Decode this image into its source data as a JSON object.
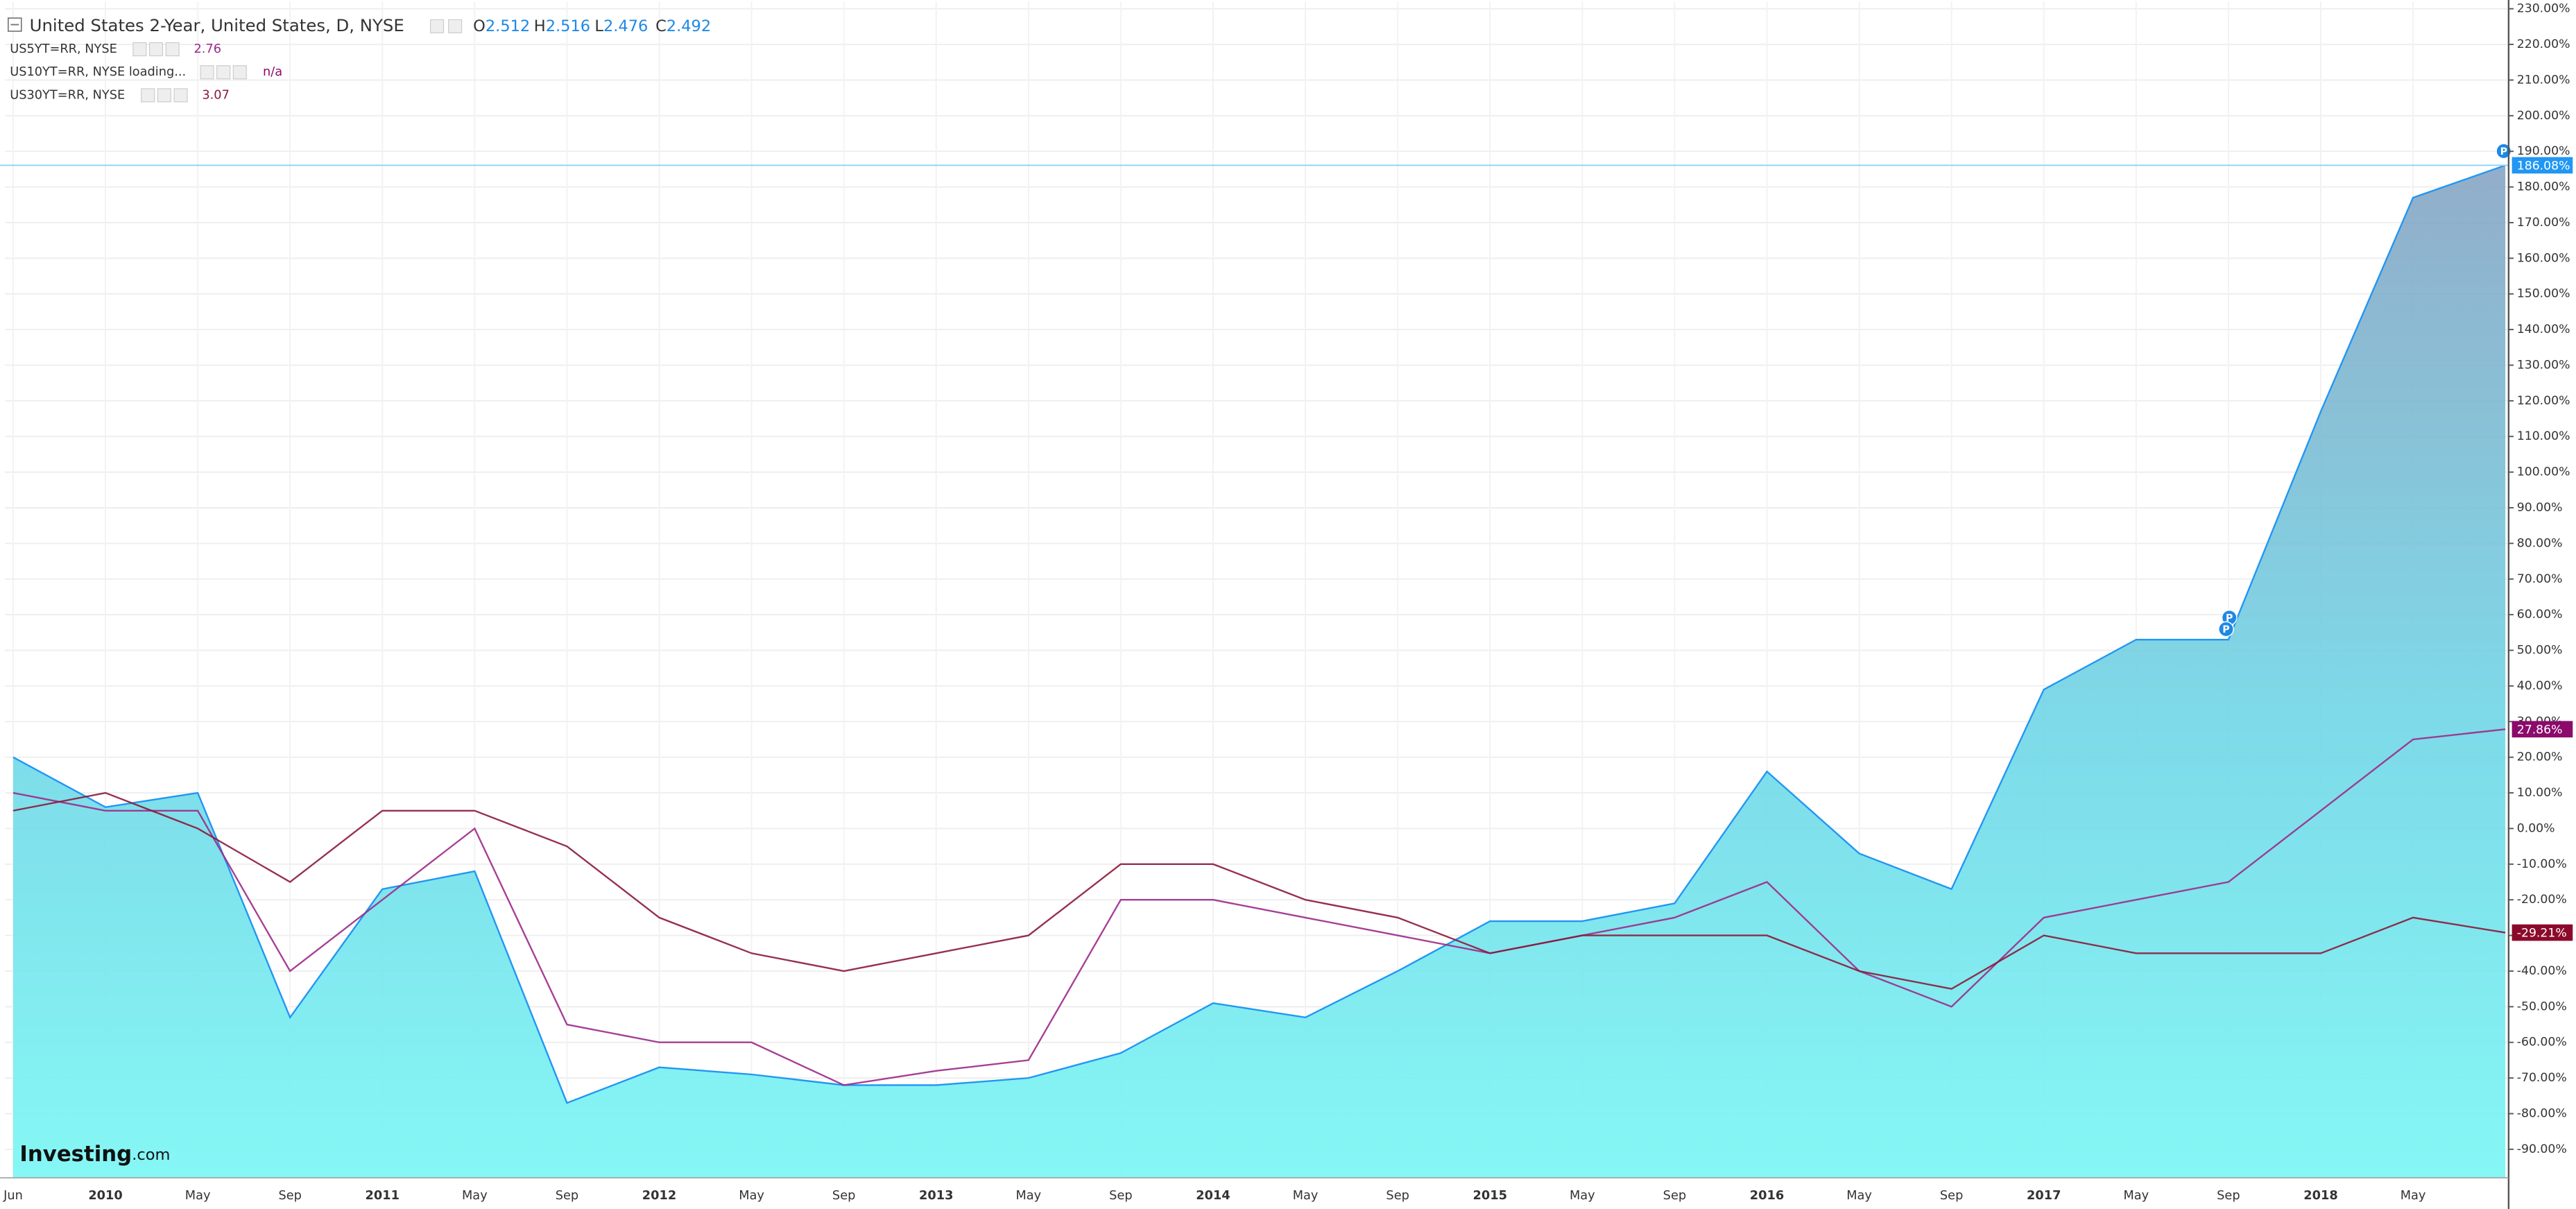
{
  "chart_data": {
    "type": "line",
    "categories": [
      "Jun",
      "2010",
      "May",
      "Sep",
      "2011",
      "May",
      "Sep",
      "2012",
      "May",
      "Sep",
      "2013",
      "May",
      "Sep",
      "2014",
      "May",
      "Sep",
      "2015",
      "May",
      "Sep",
      "2016",
      "May",
      "Sep",
      "2017",
      "May",
      "Sep",
      "2018",
      "May",
      null
    ],
    "series": [
      {
        "name": "United States 2-Year, United States, D, NYSE",
        "kind": "area",
        "color": "#2196f3",
        "ohlc": [
          {
            "label": "O",
            "value": 2.512
          },
          {
            "label": "H",
            "value": 2.516
          },
          {
            "label": "L",
            "value": 2.476
          },
          {
            "label": "C",
            "value": 2.492
          }
        ],
        "values": [
          20,
          6,
          10,
          -53,
          -17,
          -12,
          -77,
          -67,
          -69,
          -72,
          -72,
          -70,
          -63,
          -49,
          -53,
          -40,
          -26,
          -26,
          -21,
          16,
          -7,
          -17,
          39,
          53,
          53,
          117,
          177,
          186.08
        ],
        "current_label": "186.08%"
      },
      {
        "name": "US5YT=RR, NYSE",
        "kind": "line",
        "color": "#9c2a8a",
        "legend_value": 2.76,
        "values": [
          10,
          5,
          5,
          -40,
          -20,
          0,
          -55,
          -60,
          -60,
          -72,
          -68,
          -65,
          -20,
          -20,
          -25,
          -30,
          -35,
          -30,
          -25,
          -15,
          -40,
          -50,
          -25,
          -20,
          -15,
          5,
          25,
          27.86
        ],
        "current_label": "27.86%",
        "label_color": "#8b0a6b"
      },
      {
        "name": "US30YT=RR, NYSE",
        "kind": "line",
        "color": "#8b1a3a",
        "legend_value": 3.07,
        "values": [
          5,
          10,
          0,
          -15,
          5,
          5,
          -5,
          -25,
          -35,
          -40,
          -35,
          -30,
          -10,
          -10,
          -20,
          -25,
          -35,
          -30,
          -30,
          -30,
          -40,
          -45,
          -30,
          -35,
          -35,
          -35,
          -25,
          -29.21
        ],
        "current_label": "-29.21%",
        "label_color": "#8b0a2b"
      }
    ],
    "pending_series": {
      "name": "US10YT=RR, NYSE loading...",
      "value": "n/a"
    },
    "flag_label": "P",
    "logo": {
      "name": "Investing",
      "suffix": ".com"
    },
    "ylim": [
      -98,
      232
    ],
    "yticks": [
      {
        "value": 230,
        "label": "230.00%"
      },
      {
        "value": 220,
        "label": "220.00%"
      },
      {
        "value": 210,
        "label": "210.00%"
      },
      {
        "value": 200,
        "label": "200.00%"
      },
      {
        "value": 190,
        "label": "190.00%"
      },
      {
        "value": 180,
        "label": "180.00%"
      },
      {
        "value": 170,
        "label": "170.00%"
      },
      {
        "value": 160,
        "label": "160.00%"
      },
      {
        "value": 150,
        "label": "150.00%"
      },
      {
        "value": 140,
        "label": "140.00%"
      },
      {
        "value": 130,
        "label": "130.00%"
      },
      {
        "value": 120,
        "label": "120.00%"
      },
      {
        "value": 110,
        "label": "110.00%"
      },
      {
        "value": 100,
        "label": "100.00%"
      },
      {
        "value": 90,
        "label": "90.00%"
      },
      {
        "value": 80,
        "label": "80.00%"
      },
      {
        "value": 70,
        "label": "70.00%"
      },
      {
        "value": 60,
        "label": "60.00%"
      },
      {
        "value": 50,
        "label": "50.00%"
      },
      {
        "value": 40,
        "label": "40.00%"
      },
      {
        "value": 30,
        "label": "30.00%"
      },
      {
        "value": 20,
        "label": "20.00%"
      },
      {
        "value": 10,
        "label": "10.00%"
      },
      {
        "value": 0,
        "label": "0.00%"
      },
      {
        "value": -10,
        "label": "-10.00%"
      },
      {
        "value": -20,
        "label": "-20.00%"
      },
      {
        "value": -30,
        "label": "-30.00%"
      },
      {
        "value": -40,
        "label": "-40.00%"
      },
      {
        "value": -50,
        "label": "-50.00%"
      },
      {
        "value": -60,
        "label": "-60.00%"
      },
      {
        "value": -70,
        "label": "-70.00%"
      },
      {
        "value": -80,
        "label": "-80.00%"
      },
      {
        "value": -90,
        "label": "-90.00%"
      }
    ],
    "grid": true
  }
}
